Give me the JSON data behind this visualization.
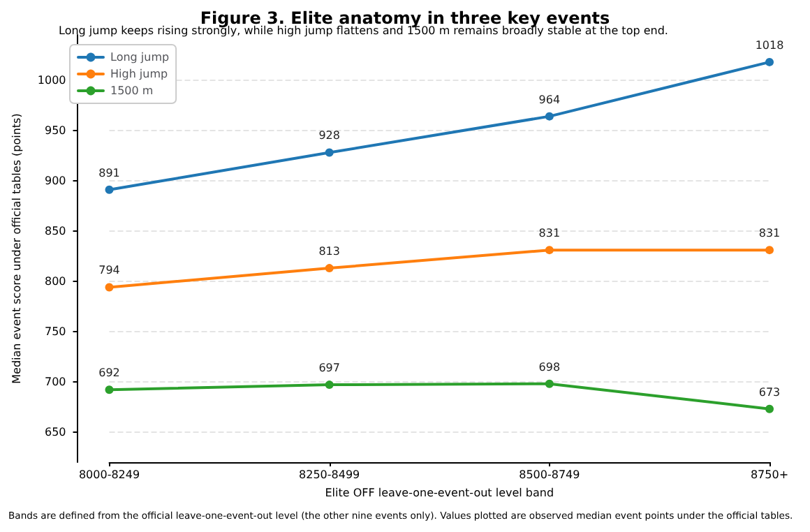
{
  "chart_data": {
    "type": "line",
    "title": "Figure 3. Elite anatomy in three key events",
    "subtitle": "Long jump keeps rising strongly, while high jump flattens and 1500 m remains broadly stable at the top end.",
    "xlabel": "Elite OFF leave-one-event-out level band",
    "ylabel": "Median event score under official tables (points)",
    "annotations": [
      "Bands are defined from the official leave-one-event-out level (the other nine events only). Values plotted are observed median event points under the official tables."
    ],
    "categories": [
      "8000-8249",
      "8250-8499",
      "8500-8749",
      "8750+"
    ],
    "series": [
      {
        "name": "Long jump",
        "color": "#1f77b4",
        "values": [
          891,
          928,
          964,
          1018
        ]
      },
      {
        "name": "High jump",
        "color": "#ff7f0e",
        "values": [
          794,
          813,
          831,
          831
        ]
      },
      {
        "name": "1500 m",
        "color": "#2ca02c",
        "values": [
          692,
          697,
          698,
          673
        ]
      }
    ],
    "ylim": [
      620,
      1045
    ],
    "yticks": [
      650,
      700,
      750,
      800,
      850,
      900,
      950,
      1000
    ],
    "grid": "y",
    "legend": "top left",
    "marker": "circle",
    "line_style": "solid",
    "data_labels": true
  }
}
